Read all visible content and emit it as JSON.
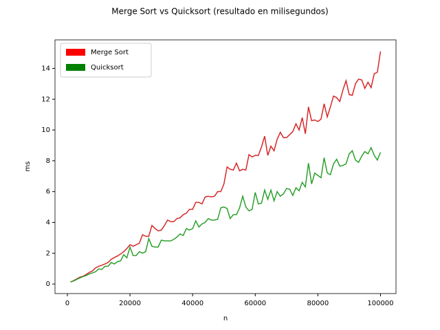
{
  "chart_data": {
    "type": "line",
    "title": "Merge Sort vs Quicksort (resultado en milisegundos)",
    "xlabel": "n",
    "ylabel": "ms",
    "x": [
      1000,
      2000,
      3000,
      4000,
      5000,
      6000,
      7000,
      8000,
      9000,
      10000,
      11000,
      12000,
      13000,
      14000,
      15000,
      16000,
      17000,
      18000,
      19000,
      20000,
      21000,
      22000,
      23000,
      24000,
      25000,
      26000,
      27000,
      28000,
      29000,
      30000,
      31000,
      32000,
      33000,
      34000,
      35000,
      36000,
      37000,
      38000,
      39000,
      40000,
      41000,
      42000,
      43000,
      44000,
      45000,
      46000,
      47000,
      48000,
      49000,
      50000,
      51000,
      52000,
      53000,
      54000,
      55000,
      56000,
      57000,
      58000,
      59000,
      60000,
      61000,
      62000,
      63000,
      64000,
      65000,
      66000,
      67000,
      68000,
      69000,
      70000,
      71000,
      72000,
      73000,
      74000,
      75000,
      76000,
      77000,
      78000,
      79000,
      80000,
      81000,
      82000,
      83000,
      84000,
      85000,
      86000,
      87000,
      88000,
      89000,
      90000,
      91000,
      92000,
      93000,
      94000,
      95000,
      96000,
      97000,
      98000,
      99000,
      100000
    ],
    "series": [
      {
        "name": "Merge Sort",
        "color": "#d62728",
        "legend_color": "#ff0000",
        "values": [
          0.13,
          0.22,
          0.33,
          0.45,
          0.5,
          0.62,
          0.75,
          0.85,
          1.05,
          1.15,
          1.22,
          1.3,
          1.4,
          1.6,
          1.72,
          1.82,
          1.95,
          2.1,
          2.3,
          2.55,
          2.45,
          2.55,
          2.65,
          3.2,
          3.1,
          3.1,
          3.8,
          3.6,
          3.45,
          3.5,
          3.8,
          4.15,
          4.05,
          4.05,
          4.25,
          4.3,
          4.5,
          4.6,
          4.85,
          4.85,
          5.3,
          5.3,
          5.2,
          5.65,
          5.7,
          5.65,
          5.7,
          6.0,
          6.0,
          6.5,
          7.6,
          7.45,
          7.4,
          7.85,
          7.35,
          7.45,
          7.4,
          8.4,
          8.25,
          8.35,
          8.35,
          8.9,
          9.6,
          8.35,
          8.95,
          8.65,
          9.4,
          9.85,
          9.5,
          9.5,
          9.7,
          9.9,
          10.4,
          10.0,
          10.8,
          9.75,
          11.5,
          10.6,
          10.65,
          10.55,
          10.7,
          11.7,
          10.85,
          11.5,
          12.2,
          12.1,
          11.85,
          12.6,
          13.2,
          12.3,
          12.25,
          13.0,
          13.3,
          13.25,
          12.7,
          13.1,
          12.75,
          13.65,
          13.75,
          15.1
        ]
      },
      {
        "name": "Quicksort",
        "color": "#2ca02c",
        "legend_color": "#008000",
        "values": [
          0.13,
          0.2,
          0.3,
          0.4,
          0.48,
          0.55,
          0.65,
          0.72,
          0.8,
          0.98,
          0.95,
          1.15,
          1.15,
          1.4,
          1.3,
          1.45,
          1.5,
          1.9,
          1.7,
          2.4,
          1.85,
          1.85,
          2.1,
          2.0,
          2.1,
          2.95,
          2.45,
          2.4,
          2.4,
          2.85,
          2.8,
          2.8,
          2.8,
          2.9,
          3.05,
          3.25,
          3.15,
          3.6,
          3.5,
          3.6,
          4.1,
          3.7,
          3.9,
          4.0,
          4.25,
          4.15,
          4.15,
          4.2,
          4.95,
          5.0,
          4.9,
          4.25,
          4.5,
          4.5,
          4.95,
          5.7,
          5.0,
          4.75,
          4.85,
          5.95,
          5.2,
          5.25,
          6.1,
          5.5,
          6.1,
          5.4,
          6.0,
          5.7,
          5.85,
          6.2,
          6.15,
          5.75,
          6.25,
          6.05,
          6.6,
          6.3,
          7.85,
          6.5,
          7.2,
          7.05,
          6.9,
          8.2,
          7.2,
          7.1,
          7.8,
          8.1,
          7.65,
          7.7,
          7.8,
          8.45,
          8.65,
          8.05,
          7.9,
          8.3,
          8.6,
          8.45,
          8.85,
          8.35,
          8.05,
          8.55
        ]
      }
    ],
    "xlim": [
      -3950,
      104950
    ],
    "xticks": [
      0,
      20000,
      40000,
      60000,
      80000,
      100000
    ],
    "ylim": [
      -0.62,
      15.85
    ],
    "yticks": [
      0,
      2,
      4,
      6,
      8,
      10,
      12,
      14
    ],
    "grid": false,
    "legend": "upper left"
  }
}
